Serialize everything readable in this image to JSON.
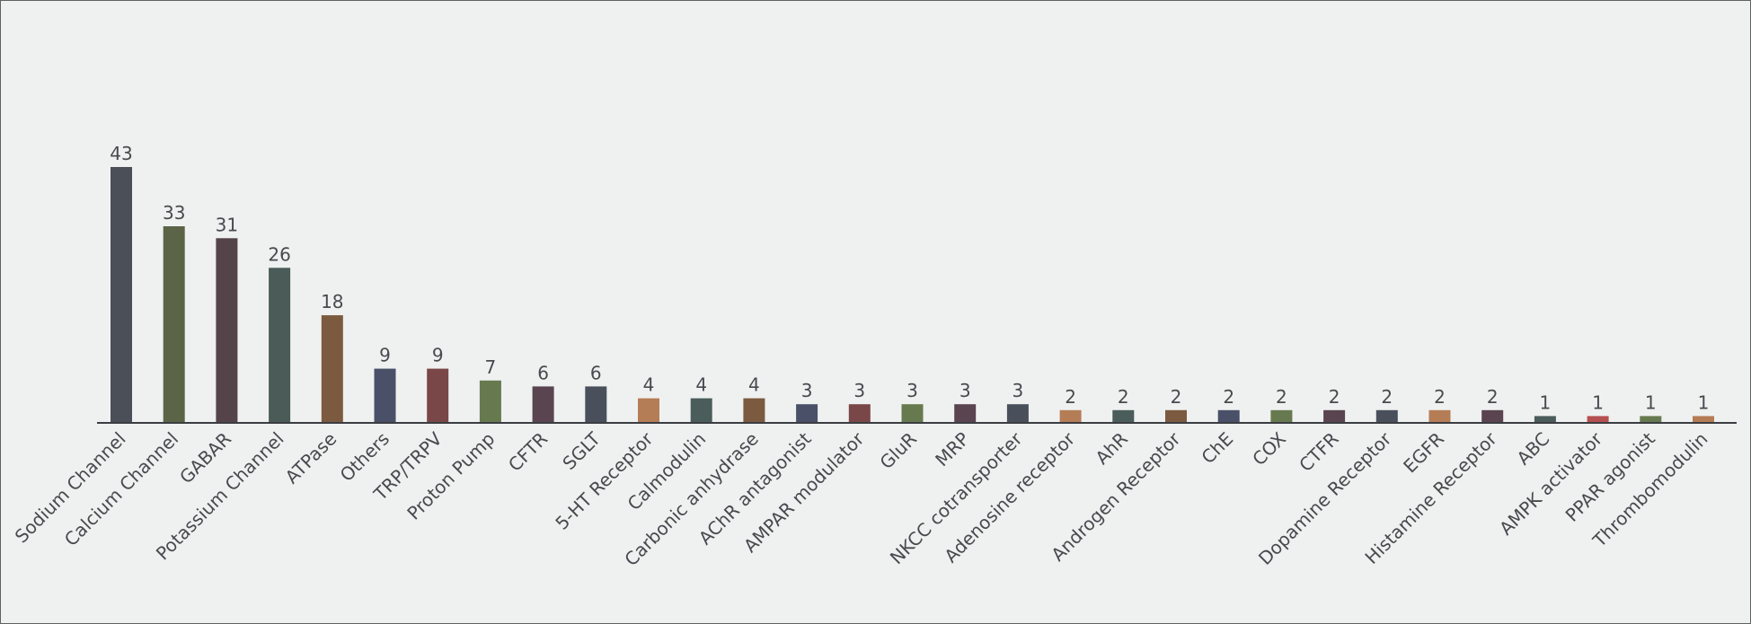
{
  "chart_data": {
    "type": "bar",
    "title": "",
    "xlabel": "",
    "ylabel": "",
    "ylim": [
      0,
      43
    ],
    "grid": false,
    "legend": "none",
    "categories": [
      "Sodium Channel",
      "Calcium Channel",
      "GABAR",
      "Potassium Channel",
      "ATPase",
      "Others",
      "TRP/TRPV",
      "Proton Pump",
      "CFTR",
      "SGLT",
      "5-HT Receptor",
      "Calmodulin",
      "Carbonic anhydrase",
      "AChR antagonist",
      "AMPAR modulator",
      "GluR",
      "MRP",
      "NKCC cotransporter",
      "Adenosine receptor",
      "AhR",
      "Androgen Receptor",
      "ChE",
      "COX",
      "CTFR",
      "Dopamine Receptor",
      "EGFR",
      "Histamine Receptor",
      "ABC",
      "AMPK activator",
      "PPAR agonist",
      "Thrombomodulin"
    ],
    "values": [
      43,
      33,
      31,
      26,
      18,
      9,
      9,
      7,
      6,
      6,
      4,
      4,
      4,
      3,
      3,
      3,
      3,
      3,
      2,
      2,
      2,
      2,
      2,
      2,
      2,
      2,
      2,
      1,
      1,
      1,
      1
    ],
    "colors": [
      "#4a4f58",
      "#5b6447",
      "#55434a",
      "#4a5b58",
      "#7b5a3f",
      "#4a5068",
      "#7a4748",
      "#677a4f",
      "#5a4450",
      "#4a4f5c",
      "#b57d56",
      "#4a5d5a",
      "#7b5a3f",
      "#4a5068",
      "#7a4748",
      "#677a4f",
      "#5a4450",
      "#4a4f5c",
      "#b57d56",
      "#4a5d5a",
      "#7b5a3f",
      "#4a5068",
      "#677a4f",
      "#5a4450",
      "#4a4f5c",
      "#b57d56",
      "#5a4450",
      "#4a5d5a",
      "#b55050",
      "#677a4f",
      "#b57d56"
    ],
    "axis_color": "#3a3d42",
    "label_color": "#474a4e"
  }
}
